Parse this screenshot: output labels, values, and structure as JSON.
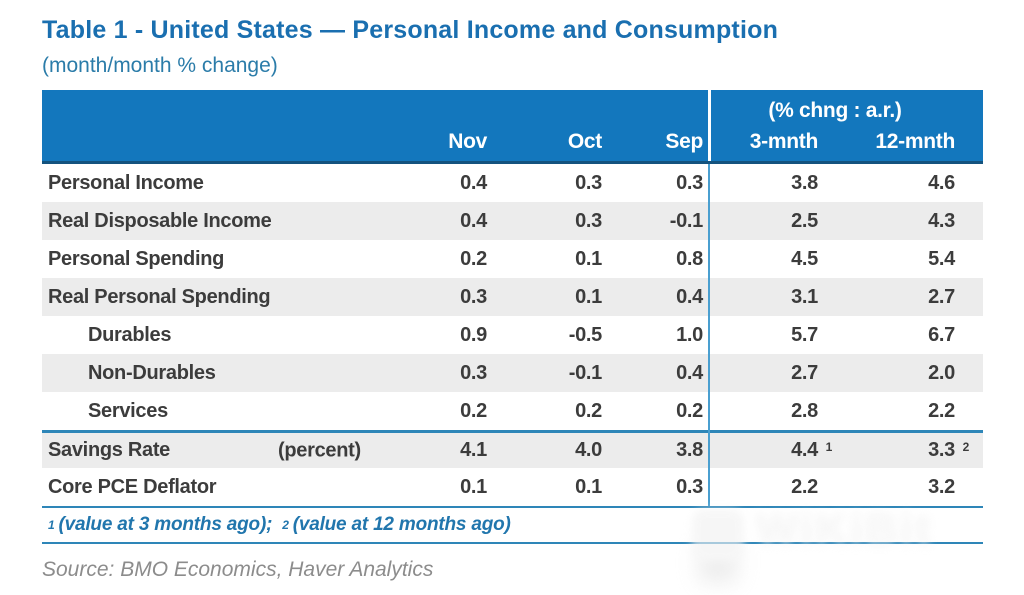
{
  "title": "Table 1 - United States — Personal Income and Consumption",
  "subtitle": "(month/month % change)",
  "chart_data": {
    "type": "table",
    "title": "Table 1 - United States — Personal Income and Consumption",
    "unit_note": "(month/month % change)",
    "group_header": "(% chng : a.r.)",
    "columns": [
      "Nov",
      "Oct",
      "Sep",
      "3-mnth",
      "12-mnth"
    ],
    "rows": [
      {
        "label": "Personal Income",
        "indent": false,
        "sublabel": "",
        "rule_above": false,
        "values": [
          "0.4",
          "0.3",
          "0.3",
          "3.8",
          "4.6"
        ],
        "sups": [
          "",
          "",
          "",
          "",
          ""
        ]
      },
      {
        "label": "Real Disposable Income",
        "indent": false,
        "sublabel": "",
        "rule_above": false,
        "values": [
          "0.4",
          "0.3",
          "-0.1",
          "2.5",
          "4.3"
        ],
        "sups": [
          "",
          "",
          "",
          "",
          ""
        ]
      },
      {
        "label": "Personal Spending",
        "indent": false,
        "sublabel": "",
        "rule_above": false,
        "values": [
          "0.2",
          "0.1",
          "0.8",
          "4.5",
          "5.4"
        ],
        "sups": [
          "",
          "",
          "",
          "",
          ""
        ]
      },
      {
        "label": "Real Personal Spending",
        "indent": false,
        "sublabel": "",
        "rule_above": false,
        "values": [
          "0.3",
          "0.1",
          "0.4",
          "3.1",
          "2.7"
        ],
        "sups": [
          "",
          "",
          "",
          "",
          ""
        ]
      },
      {
        "label": "Durables",
        "indent": true,
        "sublabel": "",
        "rule_above": false,
        "values": [
          "0.9",
          "-0.5",
          "1.0",
          "5.7",
          "6.7"
        ],
        "sups": [
          "",
          "",
          "",
          "",
          ""
        ]
      },
      {
        "label": "Non-Durables",
        "indent": true,
        "sublabel": "",
        "rule_above": false,
        "values": [
          "0.3",
          "-0.1",
          "0.4",
          "2.7",
          "2.0"
        ],
        "sups": [
          "",
          "",
          "",
          "",
          ""
        ]
      },
      {
        "label": "Services",
        "indent": true,
        "sublabel": "",
        "rule_above": false,
        "values": [
          "0.2",
          "0.2",
          "0.2",
          "2.8",
          "2.2"
        ],
        "sups": [
          "",
          "",
          "",
          "",
          ""
        ]
      },
      {
        "label": "Savings Rate",
        "indent": false,
        "sublabel": "(percent)",
        "rule_above": true,
        "values": [
          "4.1",
          "4.0",
          "3.8",
          "4.4",
          "3.3"
        ],
        "sups": [
          "",
          "",
          "",
          "1",
          "2"
        ]
      },
      {
        "label": "Core PCE Deflator",
        "indent": false,
        "sublabel": "",
        "rule_above": false,
        "values": [
          "0.1",
          "0.1",
          "0.3",
          "2.2",
          "3.2"
        ],
        "sups": [
          "",
          "",
          "",
          "",
          ""
        ]
      }
    ]
  },
  "footnote": {
    "sup1": "1",
    "text1": "(value at 3 months ago);",
    "sup2": "2",
    "text2": "(value at 12 months ago)"
  },
  "source": "Source: BMO Economics, Haver Analytics",
  "watermark": "WiKiBit",
  "colors": {
    "header_bg": "#1377bd",
    "header_border": "#14537e",
    "title_blue": "#1a6fb0",
    "subtitle_blue": "#2b7ca9",
    "footnote_blue": "#2176ad",
    "rule_blue": "#2e86b8",
    "divider_blue": "#4a9fd0",
    "row_alt_gray": "#ececec",
    "body_text": "#3c3c3c",
    "source_gray": "#8c8c8c"
  }
}
